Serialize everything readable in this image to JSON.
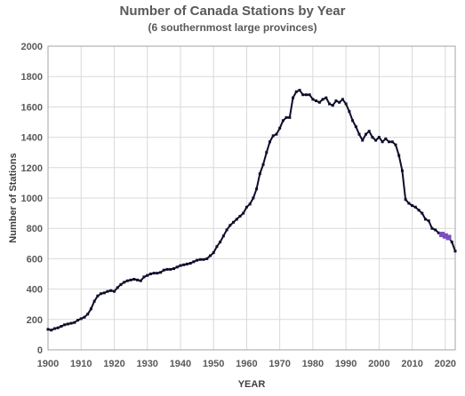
{
  "chart_data": {
    "type": "line",
    "title": "Number of Canada Stations by Year",
    "subtitle": "(6 southernmost large provinces)",
    "xlabel": "YEAR",
    "ylabel": "Number of Stations",
    "xlim": [
      1900,
      2023
    ],
    "ylim": [
      0,
      2000
    ],
    "xticks": [
      1900,
      1910,
      1920,
      1930,
      1940,
      1950,
      1960,
      1970,
      1980,
      1990,
      2000,
      2010,
      2020
    ],
    "yticks": [
      0,
      200,
      400,
      600,
      800,
      1000,
      1200,
      1400,
      1600,
      1800,
      2000
    ],
    "grid": true,
    "colors": {
      "line": "#0d0d2b",
      "highlight": "#7b4fbf",
      "grid": "#d9d9d9"
    },
    "series": [
      {
        "x": [
          1900,
          1901,
          1902,
          1903,
          1904,
          1905,
          1906,
          1907,
          1908,
          1909,
          1910,
          1911,
          1912,
          1913,
          1914,
          1915,
          1916,
          1917,
          1918,
          1919,
          1920,
          1921,
          1922,
          1923,
          1924,
          1925,
          1926,
          1927,
          1928,
          1929,
          1930,
          1931,
          1932,
          1933,
          1934,
          1935,
          1936,
          1937,
          1938,
          1939,
          1940,
          1941,
          1942,
          1943,
          1944,
          1945,
          1946,
          1947,
          1948,
          1949,
          1950,
          1951,
          1952,
          1953,
          1954,
          1955,
          1956,
          1957,
          1958,
          1959,
          1960,
          1961,
          1962,
          1963,
          1964,
          1965,
          1966,
          1967,
          1968,
          1969,
          1970,
          1971,
          1972,
          1973,
          1974,
          1975,
          1976,
          1977,
          1978,
          1979,
          1980,
          1981,
          1982,
          1983,
          1984,
          1985,
          1986,
          1987,
          1988,
          1989,
          1990,
          1991,
          1992,
          1993,
          1994,
          1995,
          1996,
          1997,
          1998,
          1999,
          2000,
          2001,
          2002,
          2003,
          2004,
          2005,
          2006,
          2007,
          2008,
          2009,
          2010,
          2011,
          2012,
          2013,
          2014,
          2015,
          2016,
          2017,
          2018,
          2019,
          2020,
          2021,
          2022,
          2023
        ],
        "values": [
          135,
          130,
          140,
          145,
          155,
          165,
          170,
          175,
          180,
          195,
          205,
          215,
          235,
          270,
          320,
          355,
          370,
          375,
          385,
          390,
          385,
          410,
          430,
          445,
          455,
          460,
          465,
          460,
          455,
          480,
          490,
          500,
          505,
          505,
          510,
          525,
          530,
          530,
          535,
          545,
          555,
          560,
          565,
          570,
          580,
          590,
          595,
          595,
          600,
          620,
          640,
          680,
          710,
          750,
          790,
          820,
          840,
          860,
          880,
          900,
          940,
          960,
          1000,
          1060,
          1160,
          1220,
          1300,
          1370,
          1410,
          1420,
          1460,
          1510,
          1530,
          1530,
          1660,
          1700,
          1710,
          1680,
          1680,
          1680,
          1650,
          1640,
          1630,
          1650,
          1660,
          1620,
          1610,
          1640,
          1630,
          1650,
          1620,
          1570,
          1510,
          1470,
          1420,
          1380,
          1420,
          1440,
          1400,
          1380,
          1400,
          1370,
          1390,
          1370,
          1370,
          1350,
          1280,
          1180,
          990,
          965,
          950,
          940,
          920,
          900,
          860,
          850,
          800,
          790,
          770,
          760,
          750,
          740,
          710,
          650
        ],
        "highlight_x": [
          2019,
          2020,
          2021
        ]
      }
    ]
  }
}
